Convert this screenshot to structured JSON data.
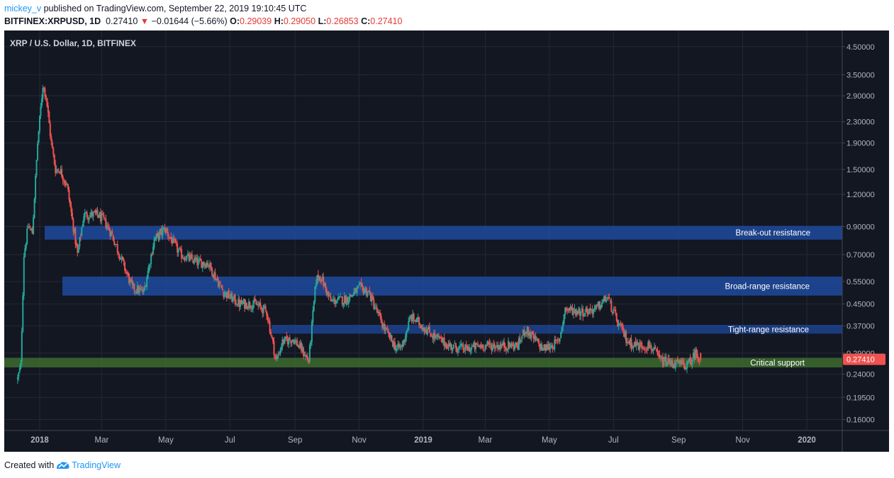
{
  "header": {
    "user": "mickey_v",
    "published_text": " published on TradingView.com, September 22, 2019 19:10:45 UTC",
    "symbol": "BITFINEX:XRPUSD, 1D",
    "last": "0.27410",
    "change_arrow": "▼",
    "change": "−0.01644 (−5.66%)",
    "o_label": "O:",
    "o_value": "0.29039",
    "h_label": "H:",
    "h_value": "0.29050",
    "l_label": "L:",
    "l_value": "0.26853",
    "c_label": "C:",
    "c_value": "0.27410"
  },
  "footer": {
    "created_with": "Created with",
    "brand": "TradingView"
  },
  "colors": {
    "background": "#131722",
    "grid": "#242832",
    "up": "#26a69a",
    "down": "#ef5350",
    "text": "#b2b5be",
    "price_tag": "#ef5350",
    "zone_blue": "#1e4a9e",
    "zone_green": "#3d6b2e"
  },
  "chart_data": {
    "type": "candlestick",
    "title": "XRP / U.S. Dollar, 1D, BITFINEX",
    "y_scale": "log",
    "ylim": [
      0.145,
      5.2
    ],
    "y_ticks": [
      "4.50000",
      "3.50000",
      "2.90000",
      "2.30000",
      "1.90000",
      "1.50000",
      "1.20000",
      "0.90000",
      "0.70000",
      "0.55000",
      "0.45000",
      "0.37000",
      "0.29000",
      "0.24000",
      "0.19500",
      "0.16000"
    ],
    "x_ticks": [
      "2018",
      "Mar",
      "May",
      "Jul",
      "Sep",
      "Nov",
      "2019",
      "Mar",
      "May",
      "Jul",
      "Sep",
      "Nov",
      "2020"
    ],
    "last_price": "0.27410",
    "zones": [
      {
        "label": "Break-out resistance",
        "low": 0.8,
        "high": 0.905
      },
      {
        "label": "Broad-range resistance",
        "low": 0.485,
        "high": 0.575
      },
      {
        "label": "Tight-range resistance",
        "low": 0.345,
        "high": 0.373
      },
      {
        "label": "Critical support",
        "low": 0.255,
        "high": 0.278
      }
    ],
    "path": [
      [
        "2017-12-11",
        0.23
      ],
      [
        "2017-12-14",
        0.26
      ],
      [
        "2017-12-17",
        0.7
      ],
      [
        "2017-12-21",
        0.9
      ],
      [
        "2017-12-25",
        0.85
      ],
      [
        "2017-12-30",
        1.9
      ],
      [
        "2018-01-04",
        3.2
      ],
      [
        "2018-01-07",
        2.9
      ],
      [
        "2018-01-12",
        1.9
      ],
      [
        "2018-01-16",
        1.5
      ],
      [
        "2018-01-20",
        1.5
      ],
      [
        "2018-01-27",
        1.3
      ],
      [
        "2018-02-06",
        0.7
      ],
      [
        "2018-02-12",
        1.0
      ],
      [
        "2018-02-25",
        1.0
      ],
      [
        "2018-03-03",
        0.95
      ],
      [
        "2018-03-10",
        0.85
      ],
      [
        "2018-03-18",
        0.7
      ],
      [
        "2018-03-30",
        0.52
      ],
      [
        "2018-04-10",
        0.5
      ],
      [
        "2018-04-20",
        0.8
      ],
      [
        "2018-04-30",
        0.88
      ],
      [
        "2018-05-15",
        0.7
      ],
      [
        "2018-06-01",
        0.65
      ],
      [
        "2018-06-10",
        0.65
      ],
      [
        "2018-06-25",
        0.5
      ],
      [
        "2018-07-10",
        0.45
      ],
      [
        "2018-07-25",
        0.45
      ],
      [
        "2018-08-05",
        0.42
      ],
      [
        "2018-08-14",
        0.27
      ],
      [
        "2018-08-20",
        0.32
      ],
      [
        "2018-08-30",
        0.33
      ],
      [
        "2018-09-07",
        0.3
      ],
      [
        "2018-09-14",
        0.27
      ],
      [
        "2018-09-21",
        0.56
      ],
      [
        "2018-09-25",
        0.58
      ],
      [
        "2018-10-05",
        0.46
      ],
      [
        "2018-10-20",
        0.47
      ],
      [
        "2018-11-02",
        0.52
      ],
      [
        "2018-11-10",
        0.5
      ],
      [
        "2018-11-20",
        0.4
      ],
      [
        "2018-11-25",
        0.36
      ],
      [
        "2018-12-07",
        0.3
      ],
      [
        "2018-12-12",
        0.31
      ],
      [
        "2018-12-20",
        0.4
      ],
      [
        "2018-12-28",
        0.38
      ],
      [
        "2019-01-10",
        0.34
      ],
      [
        "2019-01-25",
        0.31
      ],
      [
        "2019-02-10",
        0.3
      ],
      [
        "2019-02-25",
        0.31
      ],
      [
        "2019-03-15",
        0.31
      ],
      [
        "2019-04-01",
        0.31
      ],
      [
        "2019-04-08",
        0.36
      ],
      [
        "2019-04-25",
        0.3
      ],
      [
        "2019-05-10",
        0.32
      ],
      [
        "2019-05-16",
        0.43
      ],
      [
        "2019-06-01",
        0.42
      ],
      [
        "2019-06-15",
        0.43
      ],
      [
        "2019-06-25",
        0.48
      ],
      [
        "2019-07-05",
        0.38
      ],
      [
        "2019-07-15",
        0.32
      ],
      [
        "2019-07-25",
        0.31
      ],
      [
        "2019-08-05",
        0.31
      ],
      [
        "2019-08-15",
        0.27
      ],
      [
        "2019-08-25",
        0.265
      ],
      [
        "2019-09-10",
        0.26
      ],
      [
        "2019-09-17",
        0.29
      ],
      [
        "2019-09-22",
        0.274
      ]
    ]
  }
}
